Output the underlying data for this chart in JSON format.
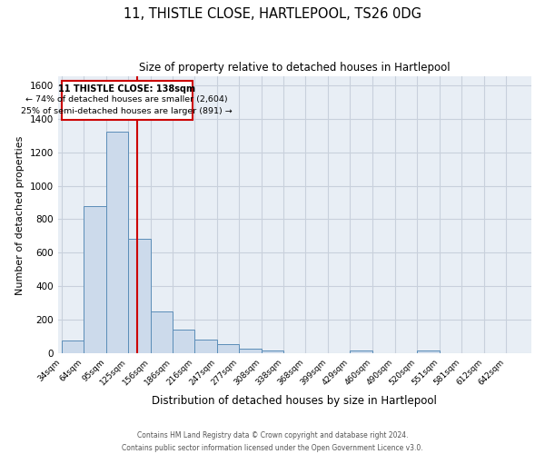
{
  "title": "11, THISTLE CLOSE, HARTLEPOOL, TS26 0DG",
  "subtitle": "Size of property relative to detached houses in Hartlepool",
  "xlabel": "Distribution of detached houses by size in Hartlepool",
  "ylabel": "Number of detached properties",
  "bin_labels": [
    "34sqm",
    "64sqm",
    "95sqm",
    "125sqm",
    "156sqm",
    "186sqm",
    "216sqm",
    "247sqm",
    "277sqm",
    "308sqm",
    "338sqm",
    "368sqm",
    "399sqm",
    "429sqm",
    "460sqm",
    "490sqm",
    "520sqm",
    "551sqm",
    "581sqm",
    "612sqm",
    "642sqm"
  ],
  "bar_heights": [
    75,
    880,
    1320,
    685,
    250,
    140,
    80,
    55,
    30,
    20,
    0,
    0,
    0,
    20,
    0,
    0,
    20,
    0,
    0,
    0,
    0
  ],
  "bar_color": "#ccdaeb",
  "bar_edge_color": "#5b8db8",
  "vline_color": "#cc0000",
  "property_size_sqm": 138,
  "annotation_title": "11 THISTLE CLOSE: 138sqm",
  "annotation_line1": "← 74% of detached houses are smaller (2,604)",
  "annotation_line2": "25% of semi-detached houses are larger (891) →",
  "annotation_box_color": "#ffffff",
  "annotation_box_edge_color": "#cc0000",
  "ylim": [
    0,
    1650
  ],
  "yticks": [
    0,
    200,
    400,
    600,
    800,
    1000,
    1200,
    1400,
    1600
  ],
  "footer_line1": "Contains HM Land Registry data © Crown copyright and database right 2024.",
  "footer_line2": "Contains public sector information licensed under the Open Government Licence v3.0.",
  "background_color": "#e8eef5",
  "grid_color": "#c8d0dc"
}
